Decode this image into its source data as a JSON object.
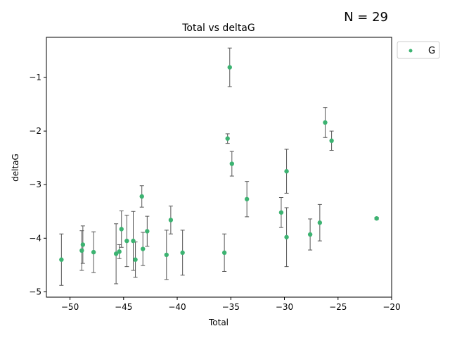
{
  "chart_data": {
    "type": "scatter",
    "title": "Total vs deltaG",
    "xlabel": "Total",
    "ylabel": "deltaG",
    "count_label": "N = 29",
    "xlim": [
      -52.2,
      -20.0
    ],
    "ylim": [
      -5.1,
      -0.25
    ],
    "xticks": [
      -50,
      -45,
      -40,
      -35,
      -30,
      -25,
      -20
    ],
    "xtick_labels": [
      "−50",
      "−45",
      "−40",
      "−35",
      "−30",
      "−25",
      "−20"
    ],
    "yticks": [
      -5,
      -4,
      -3,
      -2,
      -1
    ],
    "ytick_labels": [
      "−5",
      "−4",
      "−3",
      "−2",
      "−1"
    ],
    "grid": false,
    "legend_position": "outside top-right",
    "series": [
      {
        "name": "G",
        "color": "#3cb371",
        "error_bar_color": "#555555",
        "points": [
          {
            "x": -50.8,
            "y": -4.4,
            "err": 0.48
          },
          {
            "x": -48.9,
            "y": -4.23,
            "err": 0.37
          },
          {
            "x": -48.8,
            "y": -4.12,
            "err": 0.35
          },
          {
            "x": -47.8,
            "y": -4.26,
            "err": 0.38
          },
          {
            "x": -45.7,
            "y": -4.29,
            "err": 0.56
          },
          {
            "x": -45.4,
            "y": -4.25,
            "err": 0.13
          },
          {
            "x": -45.2,
            "y": -3.83,
            "err": 0.34
          },
          {
            "x": -44.7,
            "y": -4.05,
            "err": 0.48
          },
          {
            "x": -44.1,
            "y": -4.05,
            "err": 0.55
          },
          {
            "x": -43.9,
            "y": -4.4,
            "err": 0.33
          },
          {
            "x": -43.3,
            "y": -3.22,
            "err": 0.2
          },
          {
            "x": -43.2,
            "y": -4.2,
            "err": 0.31
          },
          {
            "x": -42.8,
            "y": -3.87,
            "err": 0.28
          },
          {
            "x": -41.0,
            "y": -4.31,
            "err": 0.46
          },
          {
            "x": -40.6,
            "y": -3.66,
            "err": 0.26
          },
          {
            "x": -39.5,
            "y": -4.27,
            "err": 0.42
          },
          {
            "x": -35.6,
            "y": -4.27,
            "err": 0.35
          },
          {
            "x": -35.3,
            "y": -2.14,
            "err": 0.09
          },
          {
            "x": -35.1,
            "y": -0.81,
            "err": 0.36
          },
          {
            "x": -34.9,
            "y": -2.61,
            "err": 0.23
          },
          {
            "x": -33.5,
            "y": -3.27,
            "err": 0.33
          },
          {
            "x": -30.3,
            "y": -3.52,
            "err": 0.28
          },
          {
            "x": -29.8,
            "y": -2.75,
            "err": 0.41
          },
          {
            "x": -29.8,
            "y": -3.98,
            "err": 0.55
          },
          {
            "x": -27.6,
            "y": -3.93,
            "err": 0.29
          },
          {
            "x": -26.7,
            "y": -3.71,
            "err": 0.34
          },
          {
            "x": -26.2,
            "y": -1.84,
            "err": 0.28
          },
          {
            "x": -25.6,
            "y": -2.18,
            "err": 0.18
          },
          {
            "x": -21.4,
            "y": -3.63,
            "err": 0.02
          }
        ]
      }
    ]
  }
}
